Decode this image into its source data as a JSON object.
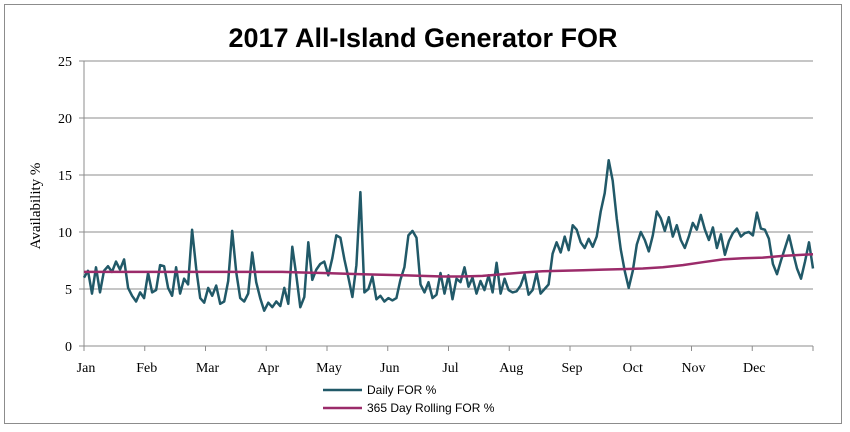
{
  "chart_data": {
    "type": "line",
    "title": "2017 All-Island Generator FOR",
    "ylabel": "Availability  %",
    "xlabel": "",
    "ylim": [
      0,
      25
    ],
    "yticks": [
      0,
      5,
      10,
      15,
      20,
      25
    ],
    "x_tick_labels": [
      "Jan",
      "Feb",
      "Mar",
      "Apr",
      "May",
      "Jun",
      "Jul",
      "Aug",
      "Sep",
      "Oct",
      "Nov",
      "Dec"
    ],
    "x_unit": "day of year",
    "xlim": [
      1,
      365
    ],
    "grid": "horizontal",
    "legend_position": "bottom",
    "series": [
      {
        "name": "Daily FOR %",
        "color": "#215968",
        "points": [
          [
            1,
            6.0
          ],
          [
            3,
            6.6
          ],
          [
            5,
            4.6
          ],
          [
            7,
            6.9
          ],
          [
            9,
            4.7
          ],
          [
            11,
            6.6
          ],
          [
            13,
            7.0
          ],
          [
            15,
            6.5
          ],
          [
            17,
            7.4
          ],
          [
            19,
            6.7
          ],
          [
            21,
            7.6
          ],
          [
            23,
            5.1
          ],
          [
            25,
            4.4
          ],
          [
            27,
            3.9
          ],
          [
            29,
            4.7
          ],
          [
            31,
            4.2
          ],
          [
            33,
            6.4
          ],
          [
            35,
            4.7
          ],
          [
            37,
            4.9
          ],
          [
            39,
            7.1
          ],
          [
            41,
            7.0
          ],
          [
            43,
            5.1
          ],
          [
            45,
            4.4
          ],
          [
            47,
            6.9
          ],
          [
            49,
            4.6
          ],
          [
            51,
            5.9
          ],
          [
            53,
            5.4
          ],
          [
            55,
            10.2
          ],
          [
            57,
            6.8
          ],
          [
            59,
            4.2
          ],
          [
            61,
            3.8
          ],
          [
            63,
            5.1
          ],
          [
            65,
            4.4
          ],
          [
            67,
            5.3
          ],
          [
            69,
            3.7
          ],
          [
            71,
            3.9
          ],
          [
            73,
            5.7
          ],
          [
            75,
            10.1
          ],
          [
            77,
            6.5
          ],
          [
            79,
            4.2
          ],
          [
            81,
            3.9
          ],
          [
            83,
            4.6
          ],
          [
            85,
            8.2
          ],
          [
            87,
            5.6
          ],
          [
            89,
            4.2
          ],
          [
            91,
            3.1
          ],
          [
            93,
            3.8
          ],
          [
            95,
            3.4
          ],
          [
            97,
            3.9
          ],
          [
            99,
            3.5
          ],
          [
            101,
            5.1
          ],
          [
            103,
            3.7
          ],
          [
            105,
            8.7
          ],
          [
            107,
            6.2
          ],
          [
            109,
            3.4
          ],
          [
            111,
            4.3
          ],
          [
            113,
            9.1
          ],
          [
            115,
            5.8
          ],
          [
            117,
            6.7
          ],
          [
            119,
            7.2
          ],
          [
            121,
            7.4
          ],
          [
            123,
            6.2
          ],
          [
            125,
            7.7
          ],
          [
            127,
            9.7
          ],
          [
            129,
            9.5
          ],
          [
            131,
            7.6
          ],
          [
            133,
            6.0
          ],
          [
            135,
            4.3
          ],
          [
            137,
            7.1
          ],
          [
            139,
            13.5
          ],
          [
            141,
            4.7
          ],
          [
            143,
            5.0
          ],
          [
            145,
            6.1
          ],
          [
            147,
            4.1
          ],
          [
            149,
            4.4
          ],
          [
            151,
            3.9
          ],
          [
            153,
            4.2
          ],
          [
            155,
            4.0
          ],
          [
            157,
            4.2
          ],
          [
            159,
            5.8
          ],
          [
            161,
            6.9
          ],
          [
            163,
            9.7
          ],
          [
            165,
            10.1
          ],
          [
            167,
            9.5
          ],
          [
            169,
            5.4
          ],
          [
            171,
            4.7
          ],
          [
            173,
            5.6
          ],
          [
            175,
            4.2
          ],
          [
            177,
            4.5
          ],
          [
            179,
            6.4
          ],
          [
            181,
            4.6
          ],
          [
            183,
            6.2
          ],
          [
            185,
            4.1
          ],
          [
            187,
            5.9
          ],
          [
            189,
            5.6
          ],
          [
            191,
            6.9
          ],
          [
            193,
            5.2
          ],
          [
            195,
            6.0
          ],
          [
            197,
            4.6
          ],
          [
            199,
            5.7
          ],
          [
            201,
            4.9
          ],
          [
            203,
            6.2
          ],
          [
            205,
            4.7
          ],
          [
            207,
            7.3
          ],
          [
            209,
            4.6
          ],
          [
            211,
            5.9
          ],
          [
            213,
            4.9
          ],
          [
            215,
            4.7
          ],
          [
            217,
            4.8
          ],
          [
            219,
            5.3
          ],
          [
            221,
            6.3
          ],
          [
            223,
            4.5
          ],
          [
            225,
            4.9
          ],
          [
            227,
            6.4
          ],
          [
            229,
            4.6
          ],
          [
            231,
            5.0
          ],
          [
            233,
            5.4
          ],
          [
            235,
            8.1
          ],
          [
            237,
            9.1
          ],
          [
            239,
            8.2
          ],
          [
            241,
            9.6
          ],
          [
            243,
            8.4
          ],
          [
            245,
            10.6
          ],
          [
            247,
            10.2
          ],
          [
            249,
            9.1
          ],
          [
            251,
            8.6
          ],
          [
            253,
            9.4
          ],
          [
            255,
            8.7
          ],
          [
            257,
            9.6
          ],
          [
            259,
            11.8
          ],
          [
            261,
            13.4
          ],
          [
            263,
            16.3
          ],
          [
            265,
            14.5
          ],
          [
            267,
            11.2
          ],
          [
            269,
            8.5
          ],
          [
            271,
            6.6
          ],
          [
            273,
            5.1
          ],
          [
            275,
            6.6
          ],
          [
            277,
            8.9
          ],
          [
            279,
            10.0
          ],
          [
            281,
            9.3
          ],
          [
            283,
            8.3
          ],
          [
            285,
            9.7
          ],
          [
            287,
            11.8
          ],
          [
            289,
            11.2
          ],
          [
            291,
            10.1
          ],
          [
            293,
            11.3
          ],
          [
            295,
            9.6
          ],
          [
            297,
            10.6
          ],
          [
            299,
            9.3
          ],
          [
            301,
            8.6
          ],
          [
            303,
            9.6
          ],
          [
            305,
            10.8
          ],
          [
            307,
            10.2
          ],
          [
            309,
            11.5
          ],
          [
            311,
            10.2
          ],
          [
            313,
            9.3
          ],
          [
            315,
            10.4
          ],
          [
            317,
            8.6
          ],
          [
            319,
            9.8
          ],
          [
            321,
            8.0
          ],
          [
            323,
            9.2
          ],
          [
            325,
            9.9
          ],
          [
            327,
            10.3
          ],
          [
            329,
            9.6
          ],
          [
            331,
            9.9
          ],
          [
            333,
            10.0
          ],
          [
            335,
            9.7
          ],
          [
            337,
            11.7
          ],
          [
            339,
            10.3
          ],
          [
            341,
            10.2
          ],
          [
            343,
            9.4
          ],
          [
            345,
            7.2
          ],
          [
            347,
            6.3
          ],
          [
            349,
            7.5
          ],
          [
            351,
            8.6
          ],
          [
            353,
            9.7
          ],
          [
            355,
            8.2
          ],
          [
            357,
            6.8
          ],
          [
            359,
            5.9
          ],
          [
            361,
            7.4
          ],
          [
            363,
            9.1
          ],
          [
            365,
            6.8
          ]
        ]
      },
      {
        "name": "365 Day Rolling FOR %",
        "color": "#9b2b6a",
        "points": [
          [
            1,
            6.5
          ],
          [
            20,
            6.5
          ],
          [
            40,
            6.5
          ],
          [
            60,
            6.5
          ],
          [
            80,
            6.5
          ],
          [
            100,
            6.5
          ],
          [
            110,
            6.45
          ],
          [
            120,
            6.4
          ],
          [
            130,
            6.35
          ],
          [
            140,
            6.3
          ],
          [
            150,
            6.25
          ],
          [
            160,
            6.2
          ],
          [
            170,
            6.15
          ],
          [
            180,
            6.1
          ],
          [
            190,
            6.1
          ],
          [
            200,
            6.15
          ],
          [
            210,
            6.3
          ],
          [
            220,
            6.45
          ],
          [
            230,
            6.55
          ],
          [
            240,
            6.6
          ],
          [
            250,
            6.65
          ],
          [
            260,
            6.7
          ],
          [
            270,
            6.75
          ],
          [
            280,
            6.8
          ],
          [
            290,
            6.9
          ],
          [
            300,
            7.1
          ],
          [
            310,
            7.35
          ],
          [
            320,
            7.6
          ],
          [
            330,
            7.7
          ],
          [
            340,
            7.75
          ],
          [
            350,
            7.9
          ],
          [
            360,
            8.0
          ],
          [
            365,
            8.05
          ]
        ]
      }
    ],
    "legend": [
      "Daily FOR %",
      "365 Day Rolling FOR %"
    ]
  }
}
